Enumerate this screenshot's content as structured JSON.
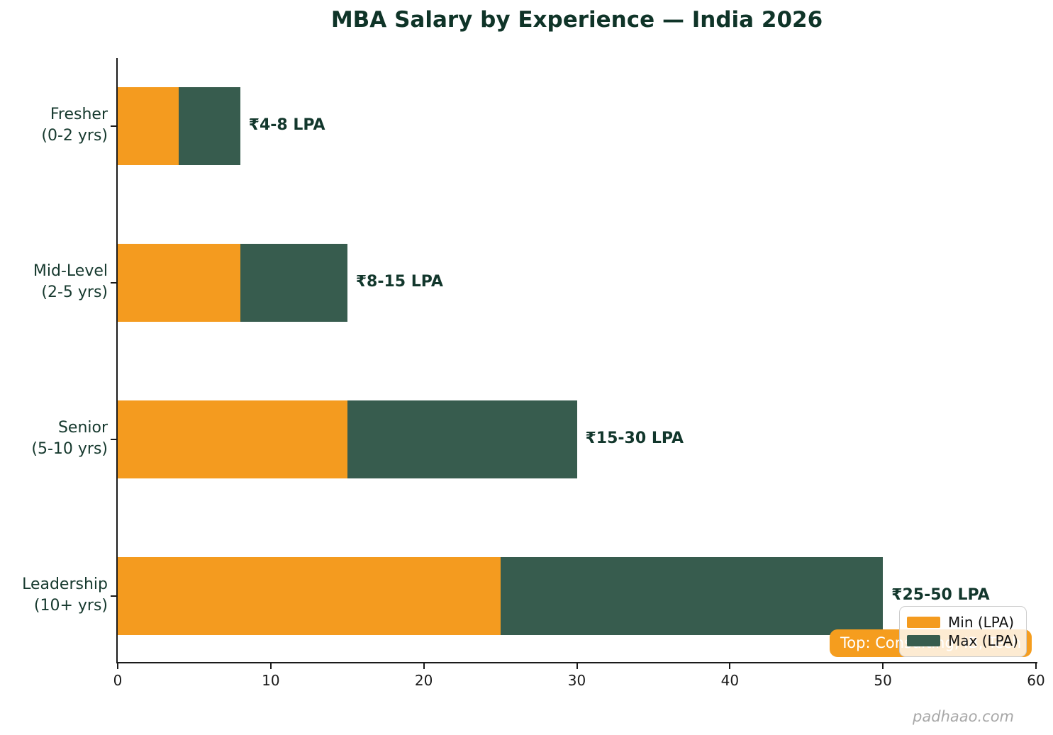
{
  "figure": {
    "title": "MBA Salary by Experience — India 2026",
    "watermark": "padhaao.com",
    "badge_text": "Top: Consulting, IB, Tech"
  },
  "colors": {
    "min_bar": "#f49b1f",
    "max_bar": "#375c4e",
    "title_text": "#0f3428",
    "label_text": "#16392e",
    "tick_text": "#1a1a1a",
    "badge_bg": "#f59d1e",
    "badge_text": "#ffffff",
    "legend_border": "#cccccc",
    "watermark_text": "#a8a8a8"
  },
  "legend": {
    "position": "lower right",
    "items": [
      {
        "label": "Min (LPA)",
        "color": "#f49b1f"
      },
      {
        "label": "Max (LPA)",
        "color": "#375c4e"
      }
    ]
  },
  "chart_data": {
    "type": "bar",
    "orientation": "horizontal",
    "stacked": true,
    "title": "MBA Salary by Experience — India 2026",
    "categories": [
      "Fresher (0-2 yrs)",
      "Mid-Level (2-5 yrs)",
      "Senior (5-10 yrs)",
      "Leadership (10+ yrs)"
    ],
    "series": [
      {
        "name": "Min (LPA)",
        "color": "#f49b1f",
        "values": [
          4,
          8,
          15,
          25
        ]
      },
      {
        "name": "Max (LPA)",
        "color": "#375c4e",
        "values": [
          8,
          15,
          30,
          50
        ]
      }
    ],
    "salary_ranges": [
      {
        "category": "Fresher (0-2 yrs)",
        "min": 4,
        "max": 8,
        "annotation": "₹4-8 LPA"
      },
      {
        "category": "Mid-Level (2-5 yrs)",
        "min": 8,
        "max": 15,
        "annotation": "₹8-15 LPA"
      },
      {
        "category": "Senior (5-10 yrs)",
        "min": 15,
        "max": 30,
        "annotation": "₹15-30 LPA"
      },
      {
        "category": "Leadership (10+ yrs)",
        "min": 25,
        "max": 50,
        "annotation": "₹25-50 LPA"
      }
    ],
    "xlabel": "",
    "ylabel": "",
    "xlim": [
      0,
      60
    ],
    "x_ticks": [
      0,
      10,
      20,
      30,
      40,
      50,
      60
    ],
    "grid": false,
    "legend_position": "lower right"
  }
}
